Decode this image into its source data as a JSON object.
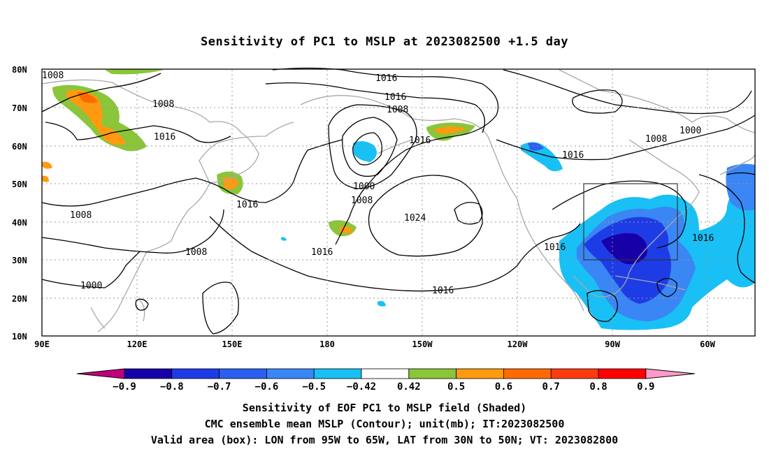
{
  "title": "Sensitivity of PC1 to MSLP at 2023082500 +1.5 day",
  "lat_labels": [
    "80N",
    "70N",
    "60N",
    "50N",
    "40N",
    "30N",
    "20N",
    "10N"
  ],
  "lon_labels": [
    "90E",
    "120E",
    "150E",
    "180",
    "150W",
    "120W",
    "90W",
    "60W"
  ],
  "contour_labels": [
    {
      "text": "1008"
    },
    {
      "text": "1016"
    },
    {
      "text": "1016"
    },
    {
      "text": "1008"
    },
    {
      "text": "1016"
    },
    {
      "text": "1008"
    },
    {
      "text": "1016"
    },
    {
      "text": "1000"
    },
    {
      "text": "1008"
    },
    {
      "text": "1016"
    },
    {
      "text": "1008"
    },
    {
      "text": "1000"
    },
    {
      "text": "1008"
    },
    {
      "text": "1024"
    },
    {
      "text": "1016"
    },
    {
      "text": "1016"
    },
    {
      "text": "1016"
    },
    {
      "text": "1016"
    },
    {
      "text": "1008"
    },
    {
      "text": "1000"
    }
  ],
  "colorbar": {
    "labels": [
      "-0.9",
      "-0.8",
      "-0.7",
      "-0.6",
      "-0.5",
      "-0.42",
      "0.42",
      "0.5",
      "0.6",
      "0.7",
      "0.8",
      "0.9"
    ],
    "colors": [
      "#1600a8",
      "#1e3ce6",
      "#2a5ff0",
      "#3a86f5",
      "#18c0f5",
      "#ffffff",
      "#8ac53a",
      "#ff9a10",
      "#ff6a00",
      "#ff3a10",
      "#ff0000"
    ],
    "low_end_color": "#c0007e",
    "high_end_color": "#ff9ac8"
  },
  "caption_lines": [
    "Sensitivity of EOF PC1 to MSLP field (Shaded)",
    "CMC ensemble mean MSLP (Contour); unit(mb); IT:2023082500",
    "Valid area (box): LON from 95W to 65W, LAT from 30N to 50N; VT: 2023082800"
  ],
  "valid_box": {
    "lon_from": "95W",
    "lon_to": "65W",
    "lat_from": "30N",
    "lat_to": "50N"
  }
}
